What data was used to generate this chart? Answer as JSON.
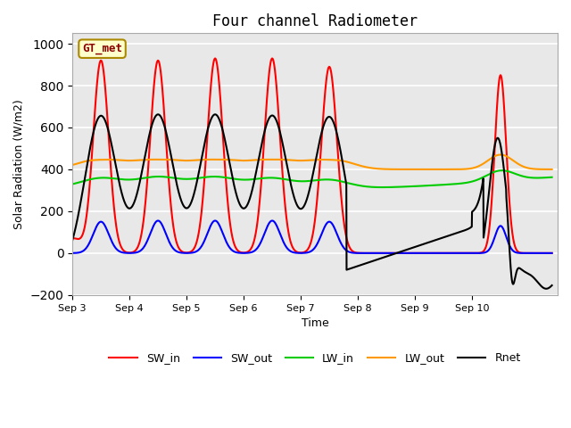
{
  "title": "Four channel Radiometer",
  "xlabel": "Time",
  "ylabel": "Solar Radiation (W/m2)",
  "ylim": [
    -200,
    1050
  ],
  "xlim": [
    0,
    8.5
  ],
  "background_color": "#e8e8e8",
  "grid_color": "white",
  "annotation_text": "GT_met",
  "annotation_bg": "#ffffcc",
  "annotation_border": "#aa8800",
  "xtick_labels": [
    "Sep 3",
    "Sep 4",
    "Sep 5",
    "Sep 6",
    "Sep 7",
    "Sep 8",
    "Sep 9",
    "Sep 10"
  ],
  "xtick_positions": [
    0,
    1,
    2,
    3,
    4,
    5,
    6,
    7
  ],
  "colors": {
    "SW_in": "#ff0000",
    "SW_out": "#0000ff",
    "LW_in": "#00cc00",
    "LW_out": "#ff9900",
    "Rnet": "#000000"
  },
  "linewidth": 1.5
}
